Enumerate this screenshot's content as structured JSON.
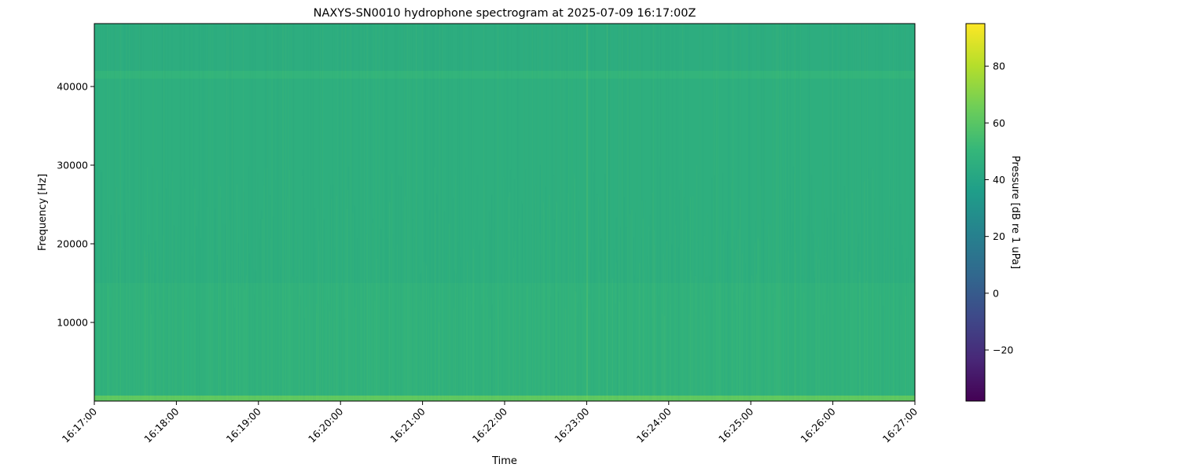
{
  "chart_data": {
    "type": "heatmap",
    "title": "NAXYS-SN0010 hydrophone spectrogram at 2025-07-09 16:17:00Z",
    "xlabel": "Time",
    "ylabel": "Frequency [Hz]",
    "x_ticks": [
      "16:17:00",
      "16:18:00",
      "16:19:00",
      "16:20:00",
      "16:21:00",
      "16:22:00",
      "16:23:00",
      "16:24:00",
      "16:25:00",
      "16:26:00",
      "16:27:00"
    ],
    "xlim": [
      "16:17:00",
      "16:27:00"
    ],
    "y_ticks": [
      10000,
      20000,
      30000,
      40000
    ],
    "ylim": [
      0,
      48000
    ],
    "colormap": "viridis",
    "colorbar": {
      "label": "Pressure [dB re 1 uPa]",
      "ticks": [
        -20,
        0,
        20,
        40,
        60,
        80
      ],
      "range": [
        -38,
        95
      ]
    },
    "bands": [
      {
        "f_min": 0,
        "f_max": 700,
        "level_db": 62
      },
      {
        "f_min": 700,
        "f_max": 15000,
        "level_db": 48
      },
      {
        "f_min": 15000,
        "f_max": 41000,
        "level_db": 46
      },
      {
        "f_min": 41000,
        "f_max": 42000,
        "level_db": 49
      },
      {
        "f_min": 42000,
        "f_max": 48000,
        "level_db": 45
      }
    ],
    "grid": false
  }
}
